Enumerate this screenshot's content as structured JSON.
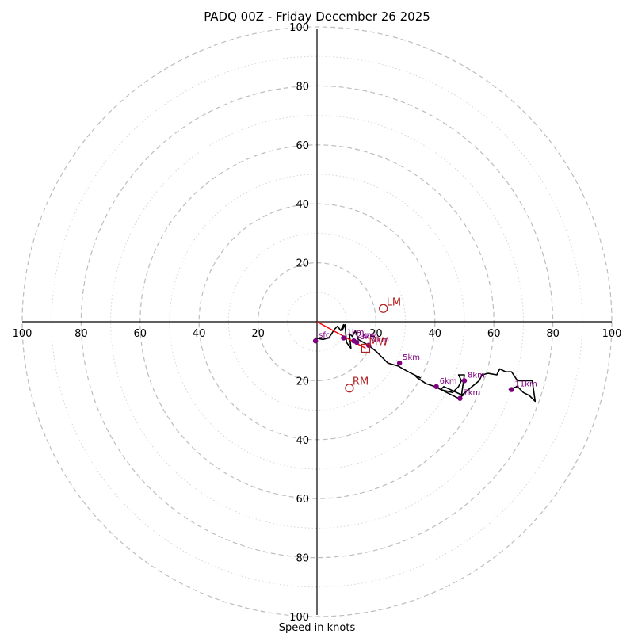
{
  "chart_data": {
    "type": "hodograph",
    "title": "PADQ 00Z - Friday December 26 2025",
    "xlabel": "Speed in knots",
    "ring_major": [
      20,
      40,
      60,
      80,
      100
    ],
    "ring_minor": [
      10,
      30,
      50,
      70,
      90
    ],
    "x_ticks": [
      "100",
      "80",
      "60",
      "40",
      "20",
      "20",
      "40",
      "60",
      "80",
      "100"
    ],
    "x_tick_values": [
      -100,
      -80,
      -60,
      -40,
      -20,
      20,
      40,
      60,
      80,
      100
    ],
    "y_ticks": [
      "100",
      "80",
      "60",
      "40",
      "20",
      "20",
      "40",
      "60",
      "80",
      "100"
    ],
    "y_tick_values": [
      100,
      80,
      60,
      40,
      20,
      -20,
      -40,
      -60,
      -80,
      -100
    ],
    "range": [
      -100,
      100
    ],
    "hodograph": {
      "u": [
        -0.5,
        2,
        4,
        6,
        7,
        8,
        9,
        8.5,
        9.5,
        10,
        11.5,
        11,
        12,
        13,
        14,
        17.5,
        20,
        24,
        27.5,
        31,
        35,
        33,
        34,
        37,
        40,
        44,
        48,
        49.5,
        43,
        42,
        46,
        48,
        49,
        48,
        50,
        49,
        55,
        56,
        58,
        61,
        62,
        64,
        66,
        68,
        70,
        73,
        74,
        72,
        70,
        68,
        65
      ],
      "v": [
        -5.5,
        -6,
        -5.5,
        -2.5,
        -1.5,
        -3,
        -1,
        -3,
        -1,
        -7,
        -9,
        -4,
        -5,
        -3,
        -6,
        -8,
        -10,
        -14,
        -15,
        -17,
        -19,
        -18,
        -19,
        -21,
        -22,
        -24,
        -26,
        -25,
        -22,
        -23,
        -24,
        -22,
        -20,
        -18,
        -18,
        -25,
        -20,
        -18,
        -17.5,
        -18,
        -16,
        -17,
        -17,
        -20,
        -20,
        -20,
        -27,
        -25,
        -24,
        -22,
        -23
      ]
    },
    "altitude_markers": [
      {
        "label": "sfc",
        "u": -0.5,
        "v": -6.5
      },
      {
        "label": "1km",
        "u": 9,
        "v": -5.5
      },
      {
        "label": "2km",
        "u": 12.5,
        "v": -6.5
      },
      {
        "label": "3km",
        "u": 13.5,
        "v": -7
      },
      {
        "label": "4km",
        "u": 17.5,
        "v": -8
      },
      {
        "label": "5km",
        "u": 28,
        "v": -14
      },
      {
        "label": "6km",
        "u": 40.5,
        "v": -22
      },
      {
        "label": "7km",
        "u": 48.5,
        "v": -26
      },
      {
        "label": "8km",
        "u": 50,
        "v": -20
      },
      {
        "label": "11km",
        "u": 66,
        "v": -23
      }
    ],
    "storm_motion": [
      {
        "label": "LM",
        "u": 22.5,
        "v": 4.5,
        "marker": "circle"
      },
      {
        "label": "RM",
        "u": 11,
        "v": -22.5,
        "marker": "circle"
      },
      {
        "label": "MW",
        "u": 16.5,
        "v": -9,
        "marker": "square"
      }
    ],
    "shear_vector": {
      "from_u": 0,
      "from_v": 0,
      "to_u": 16.5,
      "to_v": -9
    }
  }
}
